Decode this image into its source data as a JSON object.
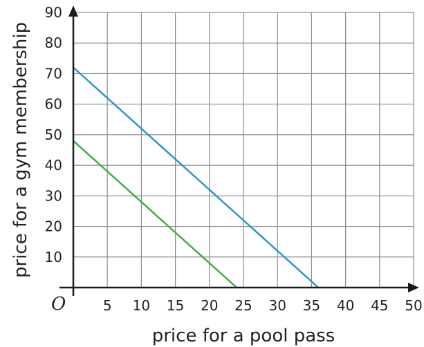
{
  "chart_data": {
    "type": "line",
    "title": "",
    "xlabel": "price for a pool pass",
    "ylabel": "price for a gym membership",
    "origin_label": "O",
    "xlim": [
      0,
      50
    ],
    "ylim": [
      0,
      90
    ],
    "x_ticks": [
      5,
      10,
      15,
      20,
      25,
      30,
      35,
      40,
      45,
      50
    ],
    "y_ticks": [
      10,
      20,
      30,
      40,
      50,
      60,
      70,
      80,
      90
    ],
    "grid": true,
    "arrows": true,
    "series": [
      {
        "color": "#2e95c8",
        "points": [
          [
            0,
            72
          ],
          [
            36,
            0
          ]
        ]
      },
      {
        "color": "#3fae49",
        "points": [
          [
            0,
            48
          ],
          [
            24,
            0
          ]
        ]
      }
    ]
  }
}
